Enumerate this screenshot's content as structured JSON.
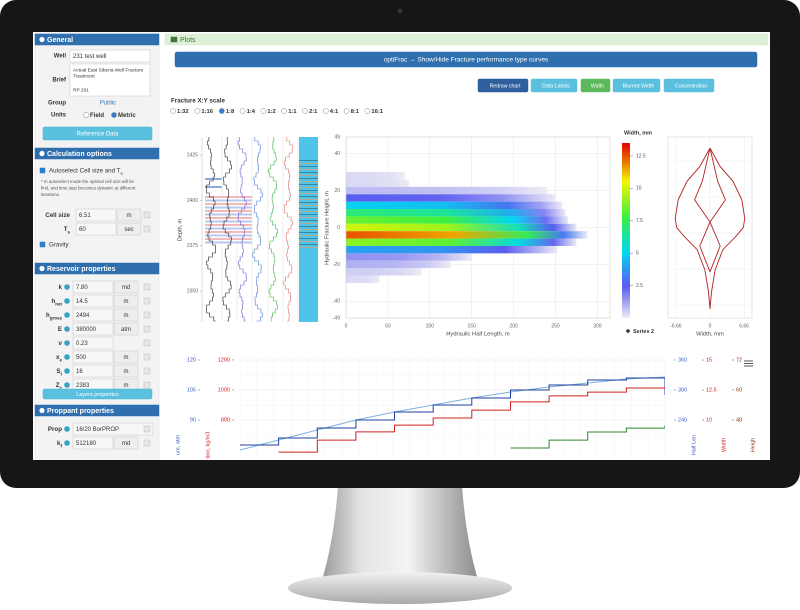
{
  "sidebar": {
    "general": {
      "title": "General",
      "well_label": "Well",
      "well": "231 test well",
      "brief_label": "Brief",
      "brief": [
        "Actual East Siberia Well Fracture",
        "Treatment"
      ],
      "brief_note": "RP 201",
      "group_label": "Group",
      "group": "Public",
      "units_label": "Units",
      "units": [
        "Field",
        "Metric"
      ],
      "units_selected": 1,
      "button": "Reference Data"
    },
    "calc": {
      "title": "Calculation options",
      "autoselect": "Autoselect Cell size and T",
      "autoselect_sub": "s",
      "note": [
        "* In autoselect mode the optimal cell size will be",
        "find, and time step becomes dynamic at different",
        "iterations."
      ],
      "rows": [
        {
          "label": "Cell size",
          "value": "6.51",
          "unit": "m"
        },
        {
          "label": "T",
          "sub": "s",
          "value": "60",
          "unit": "sec"
        }
      ],
      "gravity": "Gravity"
    },
    "reservoir": {
      "title": "Reservoir properties",
      "rows": [
        {
          "label": "k",
          "value": "7.80",
          "unit": "md"
        },
        {
          "label": "h",
          "sub": "net",
          "value": "14.5",
          "unit": "m"
        },
        {
          "label": "h",
          "sub": "gross",
          "value": "2494",
          "unit": "m"
        },
        {
          "label": "E",
          "value": "380000",
          "unit": "atm"
        },
        {
          "label": "ν",
          "value": "0.23"
        },
        {
          "label": "x",
          "sub": "e",
          "value": "500",
          "unit": "m"
        },
        {
          "label": "S",
          "sub": "t",
          "value": "16",
          "unit": "m"
        },
        {
          "label": "Z",
          "sub": "c",
          "value": "2383",
          "unit": "m"
        }
      ],
      "button": "Layers properties"
    },
    "proppant": {
      "title": "Proppant properties",
      "rows": [
        {
          "label": "Prop",
          "value": "16/20 BorPROP"
        },
        {
          "label": "k",
          "sub": "f",
          "value": "512180",
          "unit": "md"
        }
      ]
    }
  },
  "plots": {
    "title": "Plots",
    "banner": "optiFrac → Show/Hide Fracture performance type curves",
    "buttons": [
      {
        "label": "Redraw chart",
        "color": "#2f5f9e"
      },
      {
        "label": "Data Labels",
        "color": "#5bc0de"
      },
      {
        "label": "Width",
        "color": "#5cb85c"
      },
      {
        "label": "Blurred Width",
        "color": "#5bc0de"
      },
      {
        "label": "Concentration",
        "color": "#5bc0de"
      }
    ],
    "scale_label": "Fracture X:Y scale",
    "scales": [
      "1:32",
      "1:16",
      "1:8",
      "1:4",
      "1:2",
      "1:1",
      "2:1",
      "4:1",
      "8:1",
      "16:1"
    ],
    "scale_selected": 2
  },
  "chart_data": [
    {
      "type": "log",
      "y_label": "Depth, m",
      "ylim": [
        2333,
        2435
      ],
      "yticks": [
        2350,
        2375,
        2400,
        2425
      ]
    },
    {
      "type": "heatmap",
      "x_label": "Hydraulic Half Length, m",
      "y_label": "Hydraulic Fracture Height, m",
      "xlim": [
        0,
        315
      ],
      "xticks": [
        0,
        50,
        100,
        150,
        200,
        250,
        300
      ],
      "ylim": [
        -49,
        49
      ],
      "yticks": [
        49,
        40,
        20,
        0,
        -20,
        -40,
        -49
      ],
      "rows": {
        "y": [
          28,
          24,
          20,
          16,
          12,
          8,
          4,
          0,
          -4,
          -8,
          -12,
          -16,
          -20,
          -24,
          -28
        ],
        "length": [
          70,
          75,
          240,
          250,
          258,
          262,
          265,
          275,
          288,
          275,
          252,
          150,
          125,
          90,
          40
        ],
        "width": [
          0.3,
          0.3,
          0.8,
          2.5,
          5,
          7,
          8.5,
          10,
          12.5,
          9,
          4,
          1.5,
          1,
          0.5,
          0.3
        ]
      },
      "colorbar": {
        "title": "Width, mm",
        "clim": [
          0,
          13.5
        ],
        "ticks": [
          2.5,
          5,
          7.5,
          10,
          12.5
        ]
      },
      "legend": "Series 2",
      "grid": true
    },
    {
      "type": "profile",
      "x_label": "Width, mm",
      "xlim": [
        -8.2,
        8.2
      ],
      "xticks": [
        -6.66,
        0,
        6.66
      ],
      "ylim": [
        -49,
        49
      ],
      "grid": true,
      "series": [
        {
          "color": "#b22222",
          "x": [
            0,
            2,
            4.5,
            6.2,
            6.8,
            6.5,
            5,
            2.5,
            1,
            0.3,
            0
          ],
          "y": [
            43,
            33,
            25,
            15,
            5,
            0,
            -5,
            -12,
            -23,
            -35,
            -44
          ]
        },
        {
          "color": "#b22222",
          "x": [
            0,
            -2,
            -4.5,
            -6.2,
            -6.8,
            -6.5,
            -5,
            -2.5,
            -1,
            -0.3,
            0
          ],
          "y": [
            43,
            33,
            25,
            15,
            5,
            0,
            -5,
            -12,
            -23,
            -35,
            -44
          ]
        },
        {
          "color": "#b22222",
          "x": [
            0,
            1.5,
            3,
            0,
            2,
            0
          ],
          "y": [
            43,
            25,
            15,
            3,
            -10,
            -24
          ]
        },
        {
          "color": "#b22222",
          "x": [
            0,
            -1.5,
            -3,
            0,
            -2,
            0
          ],
          "y": [
            43,
            25,
            15,
            3,
            -10,
            -24
          ]
        }
      ]
    },
    {
      "type": "multi_axis_step",
      "categories": [
        null,
        null,
        null,
        null,
        null,
        null,
        null,
        null,
        null,
        null,
        null,
        null
      ],
      "axes": [
        {
          "side": "left",
          "color": "#3b5fc0",
          "label": "ure, atm",
          "ylim": [
            70,
            121
          ],
          "yticks": [
            120,
            105,
            90
          ]
        },
        {
          "side": "left",
          "color": "#cc2222",
          "label": "tion, kg/m3",
          "ylim": [
            533,
            1213
          ],
          "yticks": [
            1200,
            1000,
            800
          ]
        },
        {
          "side": "right",
          "color": "#3b5fc0",
          "label": "Half Len",
          "ylim": [
            160,
            364
          ],
          "yticks": [
            360,
            300,
            240
          ]
        },
        {
          "side": "right",
          "color": "#cc2222",
          "label": "Width",
          "ylim": [
            6.67,
            15.17
          ],
          "yticks": [
            15,
            12.5,
            10
          ]
        },
        {
          "side": "right",
          "color": "#8b3a1a",
          "label": "Heigh",
          "ylim": [
            32,
            72.8
          ],
          "yticks": [
            72,
            60,
            48
          ]
        }
      ],
      "grid": true,
      "series": [
        {
          "axis": 0,
          "color": "#7fb0e0",
          "step": false,
          "values": [
            75,
            80,
            85,
            90,
            94,
            97.5,
            101,
            104,
            106.5,
            108.5,
            110.5,
            111.5
          ]
        },
        {
          "axis": 2,
          "color": "#1f3f9f",
          "step": true,
          "values": [
            190,
            204,
            224,
            240,
            256,
            270,
            284,
            300,
            310,
            320,
            324,
            290
          ]
        },
        {
          "axis": 1,
          "color": "#cc2222",
          "step": true,
          "values": [
            null,
            586,
            666,
            720,
            766,
            813,
            866,
            920,
            960,
            986,
            1013,
            1000
          ]
        },
        {
          "axis": 3,
          "color": "#2a8a2a",
          "step": true,
          "values": [
            null,
            null,
            null,
            null,
            null,
            null,
            null,
            7.67,
            8.33,
            9.0,
            9.33,
            9.58
          ]
        }
      ]
    }
  ]
}
